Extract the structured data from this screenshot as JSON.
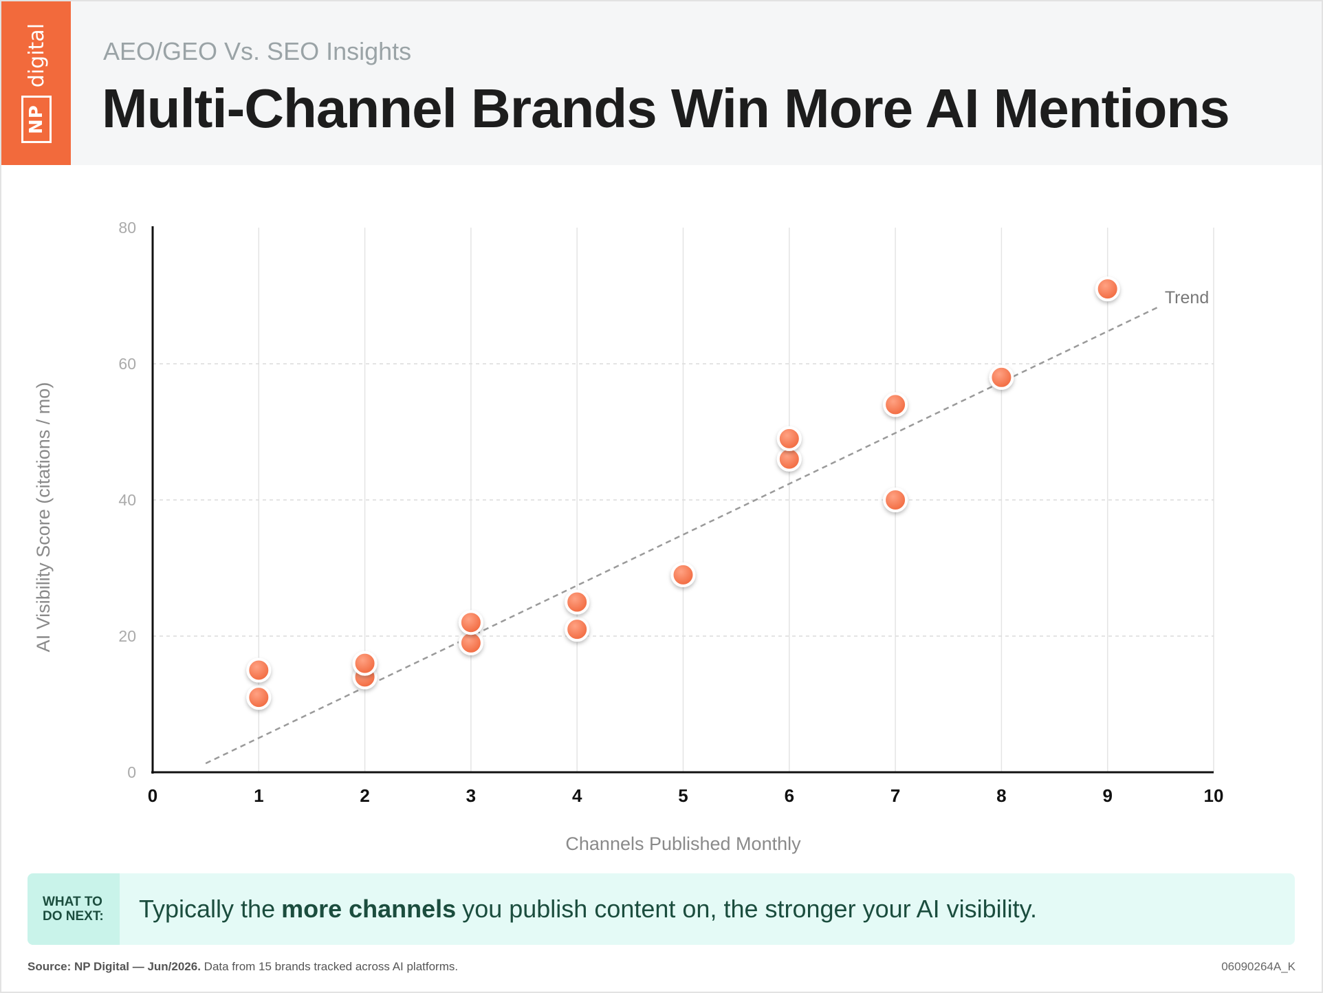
{
  "header": {
    "logo_np": "NP",
    "logo_digital": "digital",
    "subtitle": "AEO/GEO Vs. SEO Insights",
    "title": "Multi-Channel Brands Win More AI Mentions"
  },
  "chart_data": {
    "type": "scatter",
    "xlabel": "Channels Published Monthly",
    "ylabel": "AI Visibility Score (citations / mo)",
    "xlim": [
      0,
      10
    ],
    "ylim": [
      0,
      80
    ],
    "x_ticks": [
      "0",
      "1",
      "2",
      "3",
      "4",
      "5",
      "6",
      "7",
      "8",
      "9",
      "10"
    ],
    "y_ticks": [
      "0",
      "20",
      "40",
      "60",
      "80"
    ],
    "grid": "horizontal dashed + vertical light",
    "points": [
      {
        "x": 1,
        "y": 11
      },
      {
        "x": 1,
        "y": 15
      },
      {
        "x": 2,
        "y": 14
      },
      {
        "x": 2,
        "y": 16
      },
      {
        "x": 3,
        "y": 19
      },
      {
        "x": 3,
        "y": 22
      },
      {
        "x": 4,
        "y": 21
      },
      {
        "x": 4,
        "y": 25
      },
      {
        "x": 5,
        "y": 29
      },
      {
        "x": 6,
        "y": 46
      },
      {
        "x": 6,
        "y": 49
      },
      {
        "x": 7,
        "y": 40
      },
      {
        "x": 7,
        "y": 54
      },
      {
        "x": 8,
        "y": 58
      },
      {
        "x": 9,
        "y": 71
      }
    ],
    "trend": {
      "label": "Trend",
      "x": [
        0.5,
        9.5
      ],
      "y": [
        1.3,
        68.5
      ]
    },
    "colors": {
      "point": "#f26a3c",
      "trend": "#9a9a9a",
      "axis": "#111111",
      "grid": "#e4e4e4"
    }
  },
  "callout": {
    "label_line1": "WHAT TO",
    "label_line2": "DO NEXT:",
    "text_before": "Typically the",
    "text_bold": "more channels",
    "text_after": "you publish content on, the stronger your AI visibility."
  },
  "footer": {
    "source_bold": "Source: NP Digital — Jun/2026.",
    "source_text": "Data from 15 brands tracked across AI platforms.",
    "code": "06090264A_K"
  }
}
